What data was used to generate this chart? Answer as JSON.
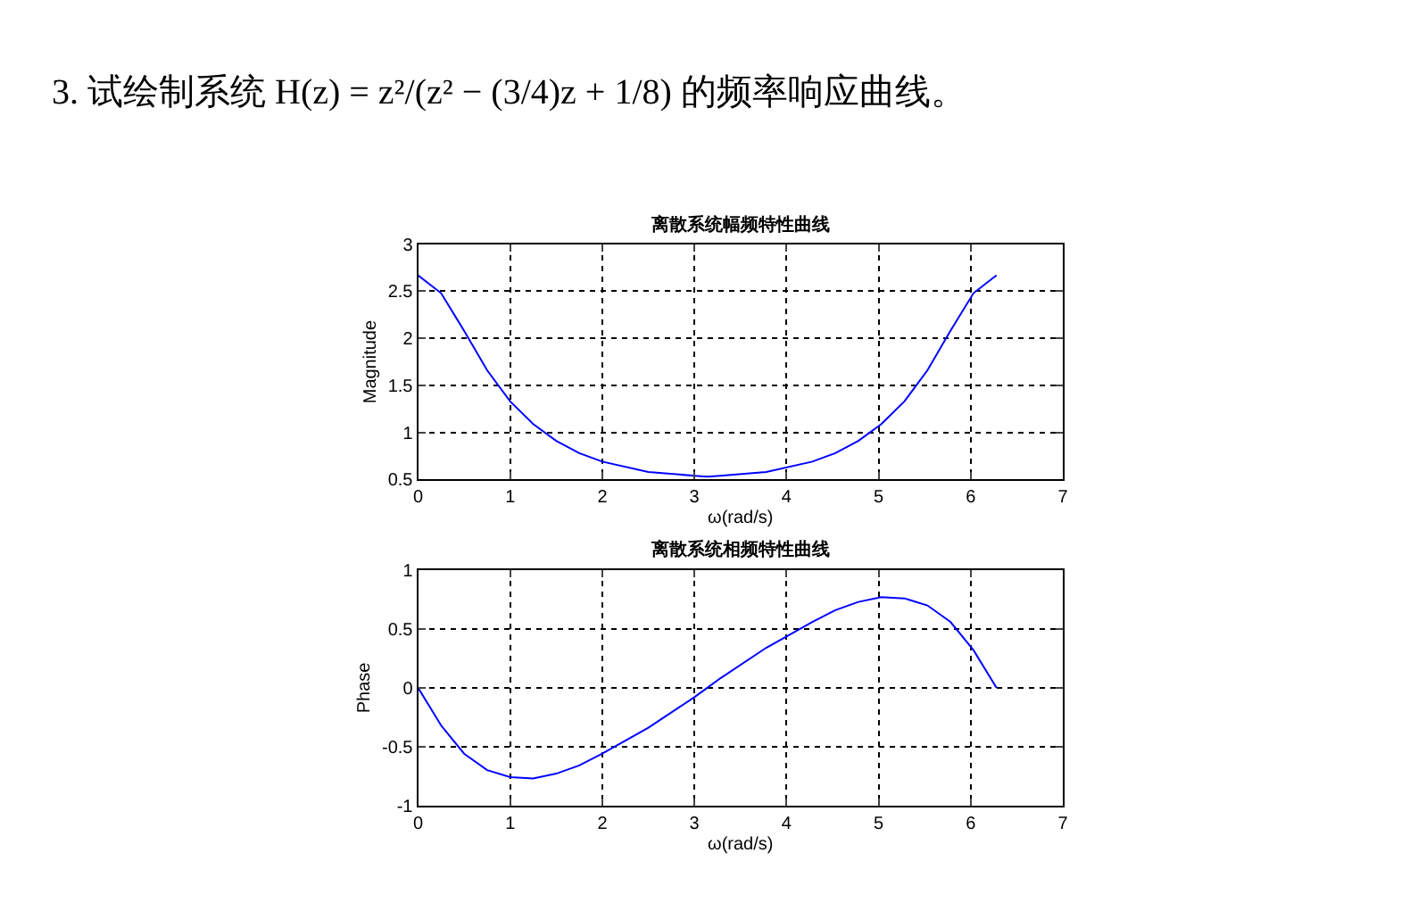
{
  "chart_data": [
    {
      "type": "line",
      "title": "离散系统幅频特性曲线",
      "xlabel": "ω(rad/s)",
      "ylabel": "Magnitude",
      "annotations": [
        "3. 试绘制系统 H(z) = z²/(z² − (3/4)z + 1/8) 的频率响应曲线。"
      ],
      "x": [
        0,
        0.25,
        0.5,
        0.75,
        1,
        1.25,
        1.5,
        1.75,
        2,
        2.5,
        3,
        3.14,
        3.28,
        3.78,
        4.28,
        4.53,
        4.78,
        5.03,
        5.28,
        5.53,
        5.78,
        6.03,
        6.28
      ],
      "series": [
        {
          "color": "#0000ff",
          "values": [
            2.67,
            2.48,
            2.08,
            1.66,
            1.33,
            1.09,
            0.91,
            0.78,
            0.69,
            0.58,
            0.54,
            0.53,
            0.54,
            0.58,
            0.69,
            0.78,
            0.91,
            1.09,
            1.33,
            1.66,
            2.08,
            2.48,
            2.67
          ]
        }
      ],
      "xlim": [
        0,
        7
      ],
      "xticks": [
        0,
        1,
        2,
        3,
        4,
        5,
        6,
        7
      ],
      "ylim": [
        0.5,
        3
      ],
      "yticks": [
        0.5,
        1,
        1.5,
        2,
        2.5,
        3
      ],
      "grid": true,
      "marker": "none",
      "legend": false
    },
    {
      "type": "line",
      "title": "离散系统相频特性曲线",
      "xlabel": "ω(rad/s)",
      "ylabel": "Phase",
      "x": [
        0,
        0.25,
        0.5,
        0.75,
        1,
        1.25,
        1.5,
        1.75,
        2,
        2.5,
        3,
        3.14,
        3.28,
        3.78,
        4.28,
        4.53,
        4.78,
        5.03,
        5.28,
        5.53,
        5.78,
        6.03,
        6.28
      ],
      "series": [
        {
          "color": "#0000ff",
          "values": [
            0,
            -0.32,
            -0.56,
            -0.7,
            -0.76,
            -0.77,
            -0.73,
            -0.66,
            -0.56,
            -0.34,
            -0.08,
            0,
            0.08,
            0.34,
            0.56,
            0.66,
            0.73,
            0.77,
            0.76,
            0.7,
            0.56,
            0.32,
            0
          ]
        }
      ],
      "xlim": [
        0,
        7
      ],
      "xticks": [
        0,
        1,
        2,
        3,
        4,
        5,
        6,
        7
      ],
      "ylim": [
        -1,
        1
      ],
      "yticks": [
        -1,
        -0.5,
        0,
        0.5,
        1
      ],
      "grid": true,
      "marker": "none",
      "legend": false
    }
  ]
}
